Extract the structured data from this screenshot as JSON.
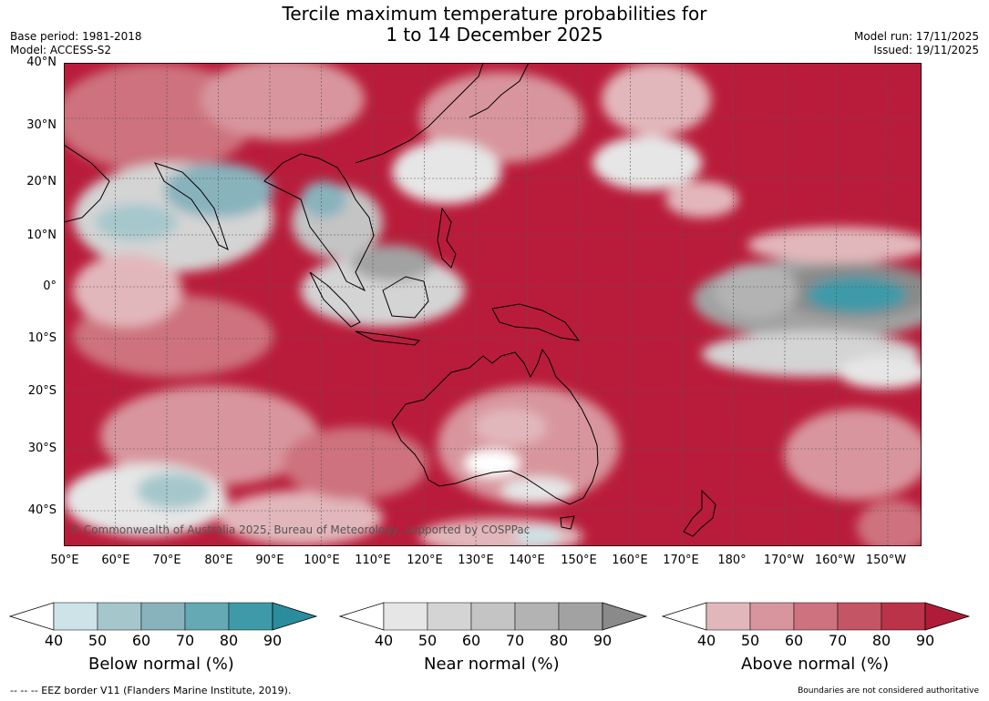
{
  "title": {
    "line1": "Tercile maximum temperature probabilities for",
    "line2": "1 to 14 December 2025"
  },
  "meta": {
    "base_period": "Base period: 1981-2018",
    "model": "Model: ACCESS-S2",
    "model_run": "Model run: 17/11/2025",
    "issued": "Issued: 19/11/2025"
  },
  "map": {
    "lat_labels": [
      "40°N",
      "30°N",
      "20°N",
      "10°N",
      "0°",
      "10°S",
      "20°S",
      "30°S",
      "40°S"
    ],
    "lon_labels": [
      "50°E",
      "60°E",
      "70°E",
      "80°E",
      "90°E",
      "100°E",
      "110°E",
      "120°E",
      "130°E",
      "140°E",
      "150°E",
      "160°E",
      "170°E",
      "180°",
      "170°W",
      "160°W",
      "150°W"
    ],
    "copyright": "© Commonwealth of Australia 2025, Bureau of Meteorology, supported by COSPPac",
    "extent": {
      "lon": [
        50,
        217
      ],
      "lat": [
        -47,
        40
      ]
    }
  },
  "colorbars": {
    "below": {
      "title": "Below normal (%)",
      "ticks": [
        "40",
        "50",
        "60",
        "70",
        "80",
        "90"
      ],
      "colors": [
        "#cde3e8",
        "#a5c7cc",
        "#88b3bd",
        "#64a9b3",
        "#3e9aa8",
        "#2a8d9d"
      ]
    },
    "near": {
      "title": "Near normal (%)",
      "ticks": [
        "40",
        "50",
        "60",
        "70",
        "80",
        "90"
      ],
      "colors": [
        "#e6e6e6",
        "#d4d4d4",
        "#c4c4c4",
        "#b3b3b3",
        "#a2a2a2",
        "#8a8a8a"
      ]
    },
    "above": {
      "title": "Above normal (%)",
      "ticks": [
        "40",
        "50",
        "60",
        "70",
        "80",
        "90"
      ],
      "colors": [
        "#e2b7bb",
        "#d8959d",
        "#cd727e",
        "#c45564",
        "#bb3348",
        "#b01c38"
      ]
    }
  },
  "footer": {
    "eez_legend": "--  --  -- EEZ border V11 (Flanders Marine Institute, 2019).",
    "boundaries_note": "Boundaries are not considered authoritative"
  }
}
